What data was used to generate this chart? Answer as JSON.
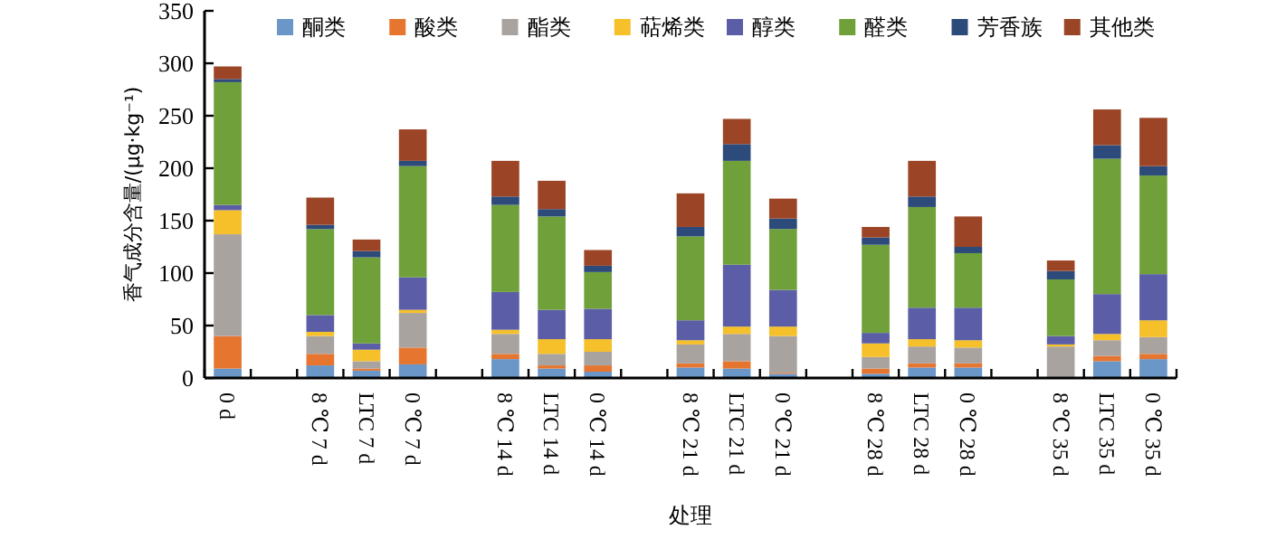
{
  "chart_data": {
    "type": "bar",
    "stacked": true,
    "xlabel": "处理",
    "ylabel": "香气成分含量/(μg·kg⁻¹)",
    "categories": [
      "0 d",
      null,
      "8 ℃ 7 d",
      "LTC 7 d",
      "0 ℃ 7 d",
      null,
      "8 ℃ 14 d",
      "LTC 14 d",
      "0 ℃ 14 d",
      null,
      "8 ℃ 21 d",
      "LTC 21 d",
      "0 ℃ 21 d",
      null,
      "8 ℃ 28 d",
      "LTC 28 d",
      "0 ℃ 28 d",
      null,
      "8 ℃ 35 d",
      "LTC 35 d",
      "0 ℃ 35 d"
    ],
    "series": [
      {
        "name": "酮类",
        "color": "#6a96c8",
        "values": [
          9,
          null,
          12,
          7,
          13,
          null,
          18,
          9,
          6,
          null,
          10,
          9,
          4,
          null,
          4,
          10,
          10,
          null,
          1,
          16,
          18
        ]
      },
      {
        "name": "酸类",
        "color": "#e6762f",
        "values": [
          31,
          null,
          11,
          2,
          16,
          null,
          5,
          3,
          6,
          null,
          4,
          7,
          1,
          null,
          5,
          4,
          4,
          null,
          0,
          5,
          5
        ]
      },
      {
        "name": "酯类",
        "color": "#a9a3a0",
        "values": [
          97,
          null,
          17,
          7,
          33,
          null,
          19,
          11,
          13,
          null,
          18,
          26,
          35,
          null,
          11,
          16,
          15,
          null,
          29,
          15,
          16
        ]
      },
      {
        "name": "萜烯类",
        "color": "#f6c02b",
        "values": [
          23,
          null,
          4,
          11,
          3,
          null,
          4,
          14,
          12,
          null,
          4,
          7,
          9,
          null,
          13,
          7,
          7,
          null,
          2,
          6,
          16
        ]
      },
      {
        "name": "醇类",
        "color": "#5b5ea6",
        "values": [
          5,
          null,
          16,
          6,
          31,
          null,
          36,
          28,
          29,
          null,
          19,
          59,
          35,
          null,
          10,
          30,
          31,
          null,
          8,
          38,
          44
        ]
      },
      {
        "name": "醛类",
        "color": "#70a03a",
        "values": [
          117,
          null,
          82,
          82,
          106,
          null,
          83,
          89,
          35,
          null,
          80,
          99,
          58,
          null,
          84,
          96,
          52,
          null,
          54,
          129,
          94
        ]
      },
      {
        "name": "芳香族",
        "color": "#2c4a7a",
        "values": [
          3,
          null,
          4,
          6,
          5,
          null,
          8,
          7,
          6,
          null,
          9,
          16,
          10,
          null,
          7,
          10,
          6,
          null,
          8,
          13,
          9
        ]
      },
      {
        "name": "其他类",
        "color": "#9b4526",
        "values": [
          12,
          null,
          26,
          11,
          30,
          null,
          34,
          27,
          15,
          null,
          32,
          24,
          19,
          null,
          10,
          34,
          29,
          null,
          10,
          34,
          46
        ]
      }
    ],
    "ylim": [
      0,
      350
    ],
    "yticks": [
      0,
      50,
      100,
      150,
      200,
      250,
      300,
      350
    ],
    "legend": "top",
    "grid": false
  }
}
